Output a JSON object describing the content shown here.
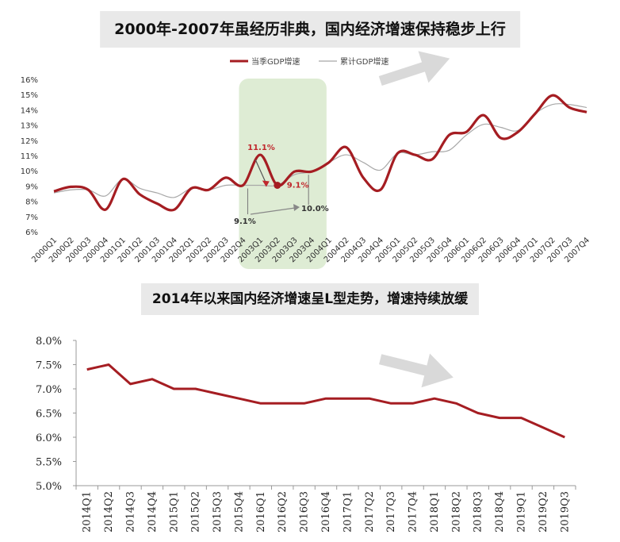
{
  "titles": {
    "top": "2000年-2007年虽经历非典，国内经济增速保持稳步上行",
    "bottom": "2014年以来国内经济增速呈L型走势，增速持续放缓"
  },
  "colors": {
    "quarterly": "#a51d22",
    "cumulative": "#a8a8a8",
    "highlight": "#d8e9cc",
    "arrow": "#d9d9d9"
  },
  "chart_data": [
    {
      "type": "line",
      "title": "2000年-2007年虽经历非典，国内经济增速保持稳步上行",
      "categories": [
        "2000Q1",
        "2000Q2",
        "2000Q3",
        "2000Q4",
        "2001Q1",
        "2001Q2",
        "2001Q3",
        "2001Q4",
        "2002Q1",
        "2002Q2",
        "2002Q3",
        "2002Q4",
        "2003Q1",
        "2003Q2",
        "2003Q3",
        "2003Q4",
        "2004Q1",
        "2004Q2",
        "2004Q3",
        "2004Q4",
        "2005Q1",
        "2005Q2",
        "2005Q3",
        "2005Q4",
        "2006Q1",
        "2006Q2",
        "2006Q3",
        "2006Q4",
        "2007Q1",
        "2007Q2",
        "2007Q3",
        "2007Q4"
      ],
      "series": [
        {
          "name": "当季GDP增速",
          "values": [
            8.7,
            9.0,
            8.8,
            7.5,
            9.5,
            8.5,
            7.9,
            7.5,
            8.9,
            8.8,
            9.6,
            9.1,
            11.1,
            9.1,
            10.0,
            10.0,
            10.6,
            11.6,
            9.6,
            8.8,
            11.2,
            11.1,
            10.8,
            12.4,
            12.6,
            13.7,
            12.2,
            12.6,
            13.8,
            15.0,
            14.2,
            13.9
          ]
        },
        {
          "name": "累计GDP增速",
          "values": [
            8.6,
            8.8,
            8.8,
            8.4,
            9.5,
            8.9,
            8.6,
            8.3,
            8.9,
            8.8,
            9.1,
            9.1,
            9.1,
            9.1,
            9.8,
            10.0,
            10.6,
            11.1,
            10.6,
            10.1,
            11.2,
            11.1,
            11.3,
            11.4,
            12.4,
            13.1,
            12.9,
            12.7,
            13.8,
            14.4,
            14.4,
            14.2
          ]
        }
      ],
      "ylim": [
        6,
        16
      ],
      "yticks": [
        "6%",
        "7%",
        "8%",
        "9%",
        "10%",
        "11%",
        "12%",
        "13%",
        "14%",
        "15%",
        "16%"
      ],
      "legend": "top-center",
      "grid": false,
      "highlight_range": [
        "2002Q4",
        "2004Q1"
      ],
      "annotations": [
        {
          "text": "11.1%",
          "color": "#c0282d"
        },
        {
          "text": "9.1%",
          "color": "#c0282d"
        },
        {
          "text": "9.1%",
          "color": "#333333"
        },
        {
          "text": "10.0%",
          "color": "#333333"
        }
      ]
    },
    {
      "type": "line",
      "title": "2014年以来国内经济增速呈L型走势，增速持续放缓",
      "categories": [
        "2014Q1",
        "2014Q2",
        "2014Q3",
        "2014Q4",
        "2015Q1",
        "2015Q2",
        "2015Q3",
        "2015Q4",
        "2016Q1",
        "2016Q2",
        "2016Q3",
        "2016Q4",
        "2017Q1",
        "2017Q2",
        "2017Q3",
        "2017Q4",
        "2018Q1",
        "2018Q2",
        "2018Q3",
        "2018Q4",
        "2019Q1",
        "2019Q2",
        "2019Q3"
      ],
      "series": [
        {
          "values": [
            7.4,
            7.5,
            7.1,
            7.2,
            7.0,
            7.0,
            6.9,
            6.8,
            6.7,
            6.7,
            6.7,
            6.8,
            6.8,
            6.8,
            6.7,
            6.7,
            6.8,
            6.7,
            6.5,
            6.4,
            6.4,
            6.2,
            6.0
          ]
        }
      ],
      "ylim": [
        5.0,
        8.0
      ],
      "yticks": [
        "5.0%",
        "5.5%",
        "6.0%",
        "6.5%",
        "7.0%",
        "7.5%",
        "8.0%"
      ],
      "grid": false,
      "trend_arrow": "down-right"
    }
  ]
}
